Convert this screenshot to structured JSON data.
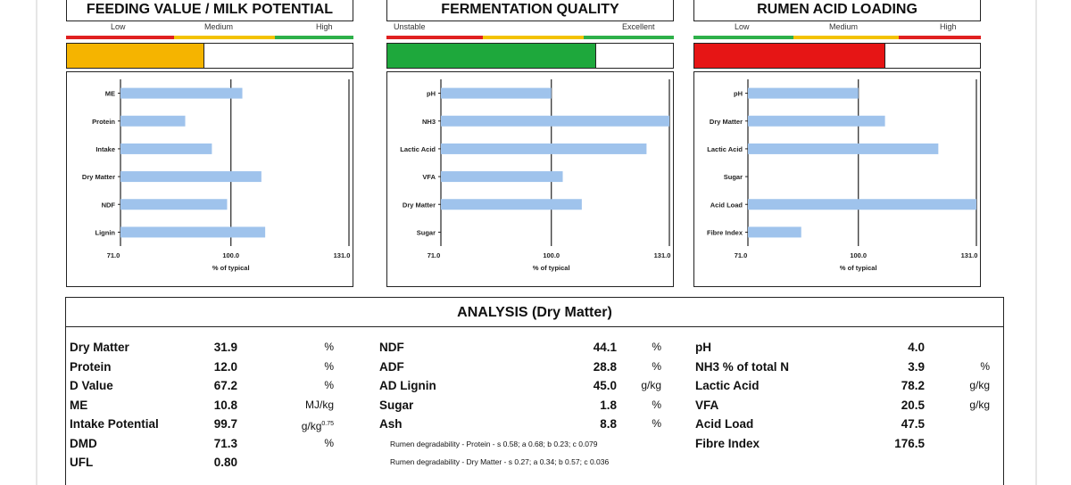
{
  "panels": [
    {
      "title": "FEEDING VALUE / MILK POTENTIAL",
      "band_labels": [
        "Low",
        "Medium",
        "High"
      ],
      "band_colors": [
        "#e02020",
        "#f3c200",
        "#2eb04a"
      ],
      "gauge": {
        "level_percent": 48,
        "color": "#f5b400"
      }
    },
    {
      "title": "FERMENTATION QUALITY",
      "band_labels": [
        "Unstable",
        "",
        "Excellent"
      ],
      "band_colors": [
        "#e02020",
        "#f3c200",
        "#2eb04a"
      ],
      "gauge": {
        "level_percent": 73,
        "color": "#1ea83c"
      }
    },
    {
      "title": "RUMEN ACID LOADING",
      "band_labels": [
        "Low",
        "Medium",
        "High"
      ],
      "band_colors": [
        "#2eb04a",
        "#f3c200",
        "#e02020"
      ],
      "gauge": {
        "level_percent": 67,
        "color": "#e61515"
      }
    }
  ],
  "chart_data": [
    {
      "type": "bar",
      "orientation": "horizontal",
      "categories": [
        "ME",
        "Protein",
        "Intake",
        "Dry Matter",
        "NDF",
        "Lignin"
      ],
      "values": [
        103,
        88,
        95,
        108,
        99,
        109
      ],
      "xlim": [
        71,
        131
      ],
      "xticks": [
        "71.0",
        "100.0",
        "131.0"
      ],
      "xlabel": "% of typical",
      "bar_color": "#9fc3ec"
    },
    {
      "type": "bar",
      "orientation": "horizontal",
      "categories": [
        "pH",
        "NH3",
        "Lactic Acid",
        "VFA",
        "Dry Matter",
        "Sugar"
      ],
      "values": [
        100,
        131,
        125,
        103,
        108,
        71
      ],
      "xlim": [
        71,
        131
      ],
      "xticks": [
        "71.0",
        "100.0",
        "131.0"
      ],
      "xlabel": "% of typical",
      "bar_color": "#9fc3ec"
    },
    {
      "type": "bar",
      "orientation": "horizontal",
      "categories": [
        "pH",
        "Dry Matter",
        "Lactic Acid",
        "Sugar",
        "Acid Load",
        "Fibre Index"
      ],
      "values": [
        100,
        107,
        121,
        71,
        131,
        85
      ],
      "xlim": [
        71,
        131
      ],
      "xticks": [
        "71.0",
        "100.0",
        "131.0"
      ],
      "xlabel": "% of typical",
      "bar_color": "#9fc3ec"
    }
  ],
  "analysis": {
    "title": "ANALYSIS (Dry Matter)",
    "col1": [
      {
        "label": "Dry Matter",
        "value": "31.9",
        "unit": "%"
      },
      {
        "label": "Protein",
        "value": "12.0",
        "unit": "%"
      },
      {
        "label": "D Value",
        "value": "67.2",
        "unit": "%"
      },
      {
        "label": "ME",
        "value": "10.8",
        "unit": "MJ/kg"
      },
      {
        "label": "Intake Potential",
        "value": "99.7",
        "unit": "g/kg",
        "unit_sup": "0.75"
      },
      {
        "label": "DMD",
        "value": "71.3",
        "unit": "%"
      },
      {
        "label": "UFL",
        "value": "0.80",
        "unit": ""
      }
    ],
    "col2": [
      {
        "label": "NDF",
        "value": "44.1",
        "unit": "%"
      },
      {
        "label": "ADF",
        "value": "28.8",
        "unit": "%"
      },
      {
        "label": "AD Lignin",
        "value": "45.0",
        "unit": "g/kg"
      },
      {
        "label": "Sugar",
        "value": "1.8",
        "unit": "%"
      },
      {
        "label": "Ash",
        "value": "8.8",
        "unit": "%"
      }
    ],
    "notes": [
      "Rumen degradability - Protein - s 0.58; a 0.68; b 0.23; c 0.079",
      "Rumen degradability - Dry Matter - s 0.27; a 0.34; b 0.57; c 0.036"
    ],
    "col3": [
      {
        "label": "pH",
        "value": "4.0",
        "unit": ""
      },
      {
        "label": "NH3 % of total N",
        "value": "3.9",
        "unit": "%"
      },
      {
        "label": "Lactic Acid",
        "value": "78.2",
        "unit": "g/kg"
      },
      {
        "label": "VFA",
        "value": "20.5",
        "unit": "g/kg"
      },
      {
        "label": "Acid Load",
        "value": "47.5",
        "unit": ""
      },
      {
        "label": "Fibre Index",
        "value": "176.5",
        "unit": ""
      }
    ]
  }
}
